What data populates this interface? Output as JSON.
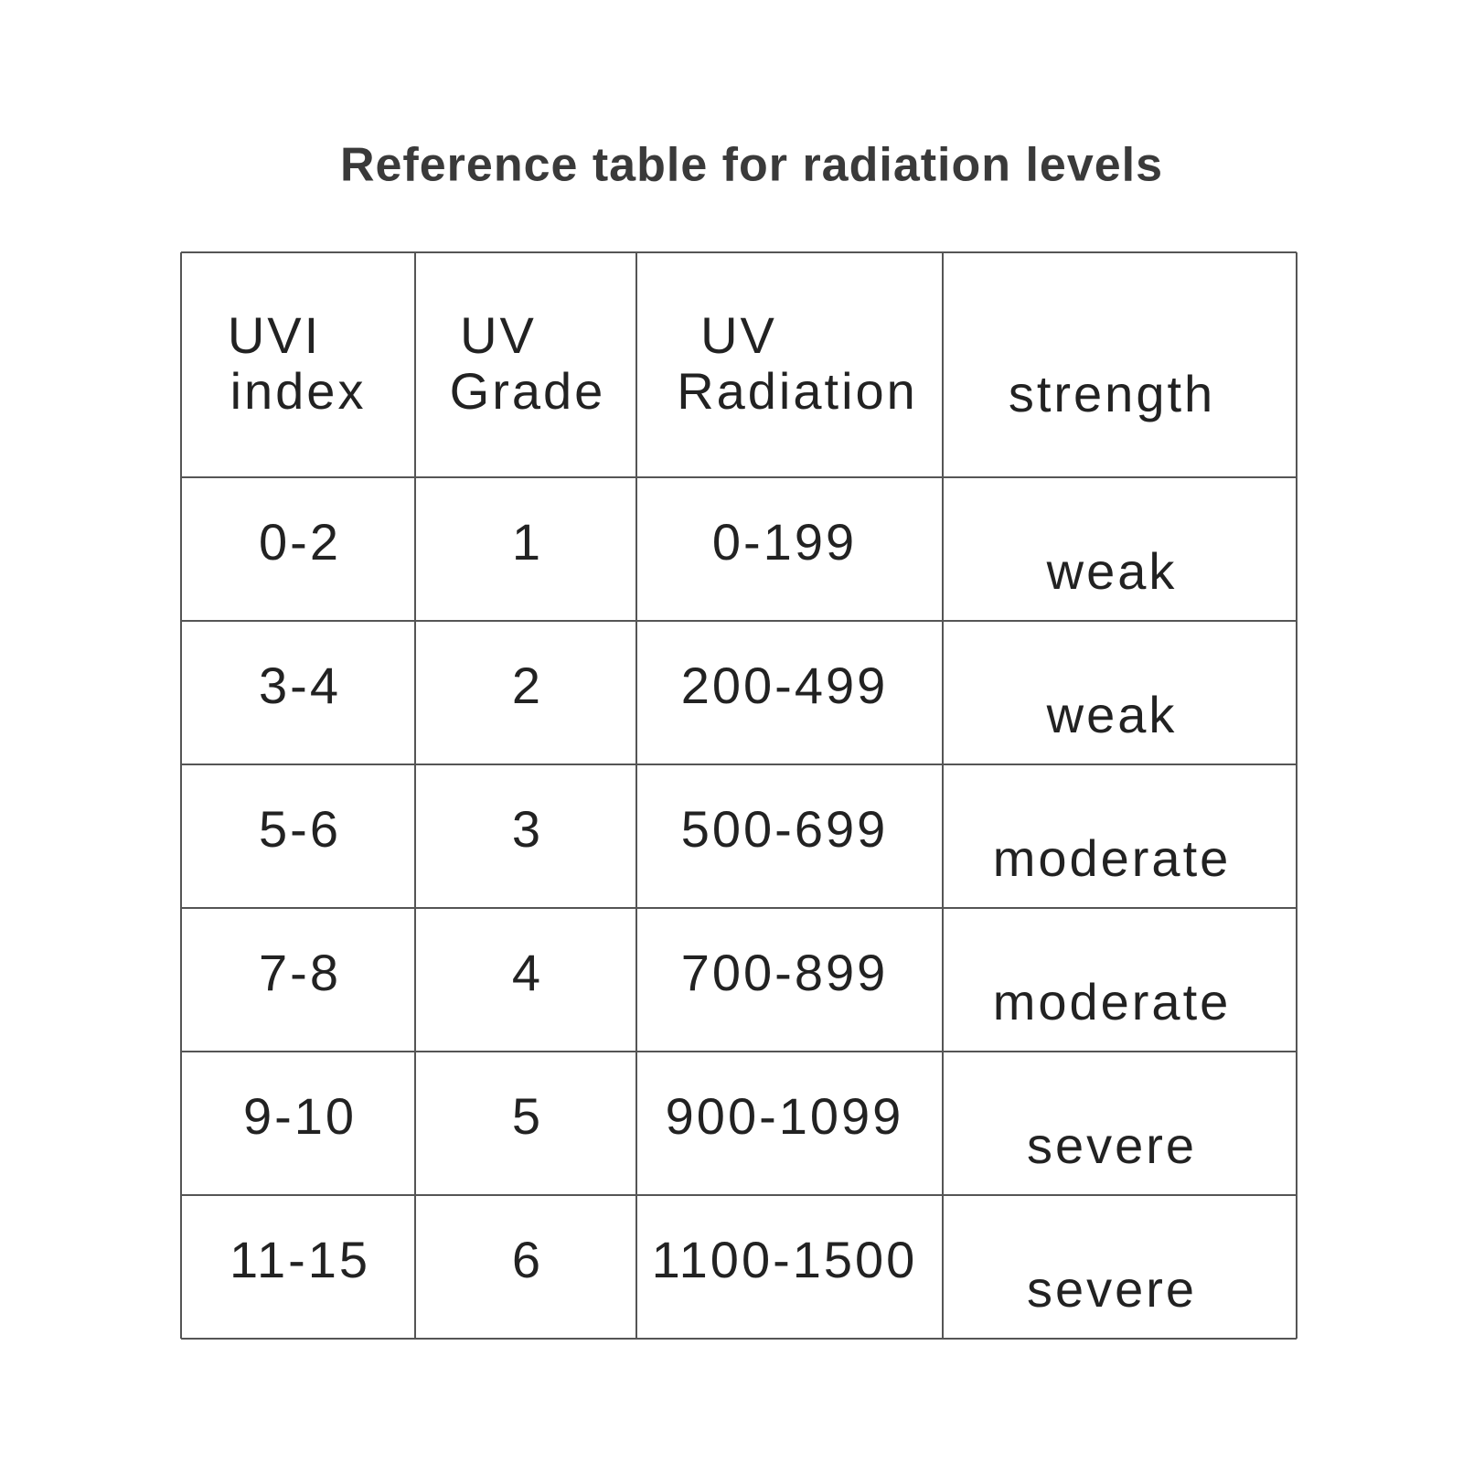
{
  "title": "Reference table for radiation levels",
  "table": {
    "header": [
      [
        "UVI",
        "index"
      ],
      [
        "UV",
        "Grade"
      ],
      [
        "UV",
        "Radiation"
      ],
      [
        "strength"
      ]
    ],
    "rows": [
      [
        "0-2",
        "1",
        "0-199",
        "weak"
      ],
      [
        "3-4",
        "2",
        "200-499",
        "weak"
      ],
      [
        "5-6",
        "3",
        "500-699",
        "moderate"
      ],
      [
        "7-8",
        "4",
        "700-899",
        "moderate"
      ],
      [
        "9-10",
        "5",
        "900-1099",
        "severe"
      ],
      [
        "11-15",
        "6",
        "1100-1500",
        "severe"
      ]
    ]
  }
}
